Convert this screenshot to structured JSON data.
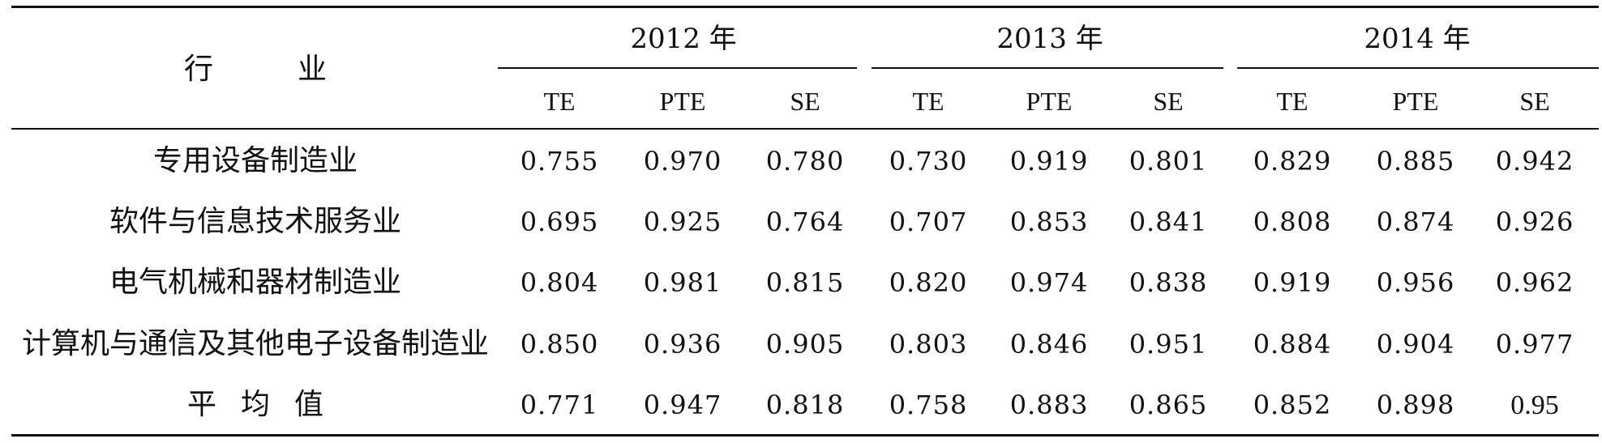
{
  "table": {
    "header": {
      "industry_label": "行",
      "industry_label_2": "业",
      "years": [
        "2012 年",
        "2013 年",
        "2014 年"
      ],
      "metrics": [
        "TE",
        "PTE",
        "SE"
      ]
    },
    "rows": [
      {
        "industry": "专用设备制造业",
        "values": [
          "0.755",
          "0.970",
          "0.780",
          "0.730",
          "0.919",
          "0.801",
          "0.829",
          "0.885",
          "0.942"
        ]
      },
      {
        "industry": "软件与信息技术服务业",
        "values": [
          "0.695",
          "0.925",
          "0.764",
          "0.707",
          "0.853",
          "0.841",
          "0.808",
          "0.874",
          "0.926"
        ]
      },
      {
        "industry": "电气机械和器材制造业",
        "values": [
          "0.804",
          "0.981",
          "0.815",
          "0.820",
          "0.974",
          "0.838",
          "0.919",
          "0.956",
          "0.962"
        ]
      },
      {
        "industry": "计算机与通信及其他电子设备制造业",
        "values": [
          "0.850",
          "0.936",
          "0.905",
          "0.803",
          "0.846",
          "0.951",
          "0.884",
          "0.904",
          "0.977"
        ]
      }
    ],
    "average": {
      "label_chars": [
        "平",
        "均",
        "值"
      ],
      "values": [
        "0.771",
        "0.947",
        "0.818",
        "0.758",
        "0.883",
        "0.865",
        "0.852",
        "0.898",
        "0.95"
      ]
    }
  }
}
